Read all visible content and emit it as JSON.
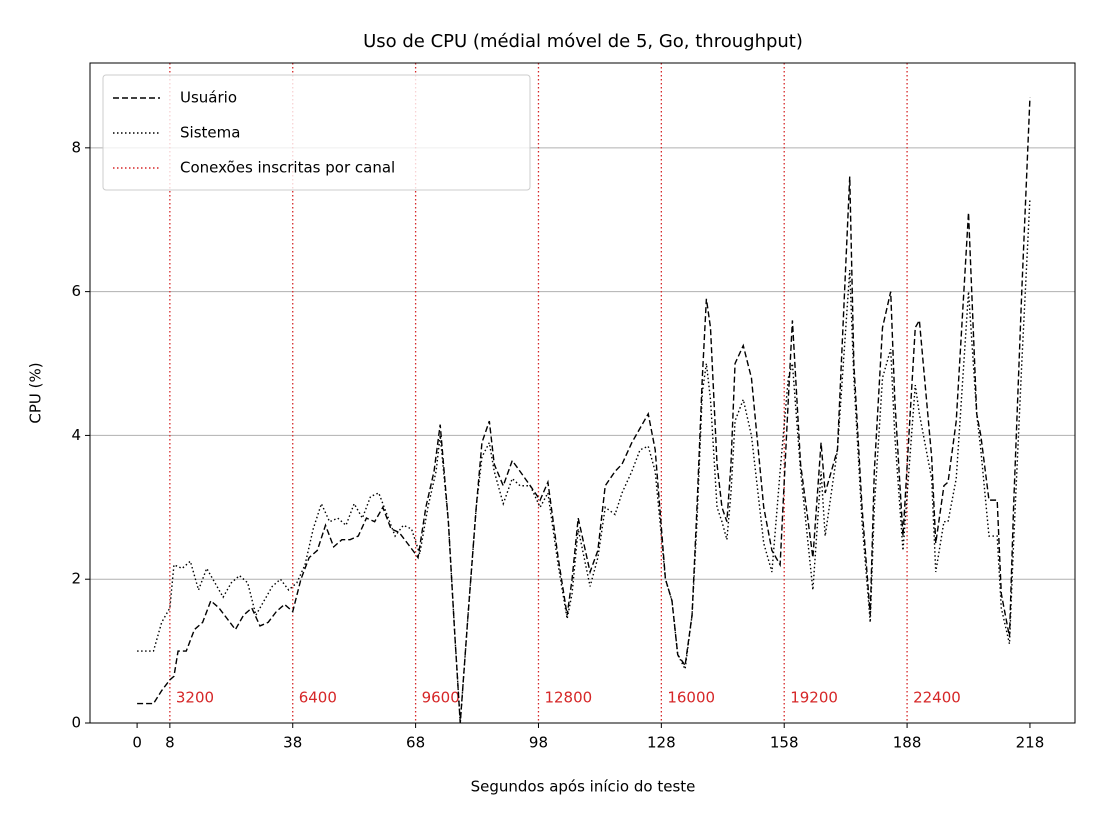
{
  "chart_data": {
    "type": "line",
    "title": "Uso de CPU (médial móvel de 5, Go, throughput)",
    "x_label": "Segundos após início do teste",
    "y_label": "CPU (%)",
    "xlim": [
      -11.5,
      229
    ],
    "ylim": [
      0,
      9.18
    ],
    "xticks": [
      0,
      8,
      38,
      68,
      98,
      128,
      158,
      188,
      218
    ],
    "yticks": [
      0,
      2,
      4,
      6,
      8
    ],
    "grid": "y",
    "legend": "upper left",
    "series": [
      {
        "name": "Usuário",
        "color": "#000000",
        "line_style": "dashed",
        "x": [
          0,
          4,
          6,
          8,
          9,
          10,
          12,
          14,
          16,
          18,
          20,
          22,
          24,
          26,
          28,
          30,
          32,
          34,
          36,
          38,
          40,
          42,
          44,
          46,
          48,
          50,
          52,
          54,
          56,
          58,
          60,
          62,
          64,
          66,
          68,
          68.6,
          70.5,
          72.5,
          74,
          76,
          77.6,
          78.9,
          80.8,
          82.8,
          84.2,
          86,
          87.2,
          89.4,
          91.6,
          93.5,
          96,
          98.4,
          100.3,
          102.8,
          105,
          106.2,
          107.7,
          110.6,
          112.5,
          114.3,
          116.7,
          118.4,
          120.8,
          122.8,
          124.8,
          126.5,
          129,
          130.6,
          132,
          133.8,
          135.5,
          136.7,
          138,
          139,
          140,
          141.6,
          142.8,
          144,
          145,
          146,
          148,
          150,
          153,
          155,
          157,
          159,
          160,
          162,
          165,
          167,
          168,
          171,
          174,
          175,
          177,
          179,
          180,
          182,
          184,
          185,
          187,
          190,
          191,
          194,
          195,
          197,
          198,
          200,
          203,
          205,
          206,
          208,
          210,
          211,
          213,
          214,
          216,
          218
        ],
        "values": [
          0.27,
          0.27,
          0.45,
          0.6,
          0.65,
          1.0,
          1.0,
          1.3,
          1.4,
          1.7,
          1.6,
          1.45,
          1.3,
          1.5,
          1.6,
          1.35,
          1.4,
          1.55,
          1.65,
          1.55,
          2.0,
          2.3,
          2.4,
          2.75,
          2.45,
          2.55,
          2.55,
          2.6,
          2.85,
          2.8,
          3.0,
          2.7,
          2.65,
          2.5,
          2.35,
          2.3,
          3.0,
          3.5,
          4.15,
          2.8,
          1.2,
          0.0,
          1.5,
          3.0,
          3.9,
          4.2,
          3.6,
          3.3,
          3.65,
          3.5,
          3.3,
          3.1,
          3.35,
          2.3,
          1.5,
          2.0,
          2.85,
          2.1,
          2.4,
          3.3,
          3.5,
          3.6,
          3.9,
          4.1,
          4.3,
          3.8,
          2.0,
          1.7,
          0.95,
          0.8,
          1.5,
          3.0,
          4.8,
          5.9,
          5.5,
          3.6,
          3.0,
          2.8,
          3.6,
          5.0,
          5.25,
          4.8,
          3.0,
          2.4,
          2.2,
          4.5,
          5.6,
          3.6,
          2.3,
          3.9,
          3.2,
          3.8,
          7.6,
          5.0,
          3.0,
          1.5,
          3.5,
          5.5,
          6.0,
          4.5,
          2.6,
          5.5,
          5.6,
          3.7,
          2.5,
          3.3,
          3.35,
          4.2,
          7.1,
          4.3,
          4.0,
          3.1,
          3.1,
          1.8,
          1.2,
          3.0,
          6.0,
          8.7
        ]
      },
      {
        "name": "Sistema",
        "color": "#000000",
        "line_style": "dotted",
        "x": [
          0,
          4,
          6,
          8,
          9,
          11,
          13,
          15,
          17,
          19,
          21,
          23,
          25,
          27,
          29,
          31,
          33,
          35,
          37,
          39,
          41,
          43,
          45,
          47,
          49,
          51,
          53,
          55,
          57,
          59,
          61,
          63,
          65,
          67,
          69,
          71,
          73,
          74,
          76,
          77.6,
          78.9,
          80.8,
          82.8,
          84.2,
          86,
          87.2,
          89.4,
          91.6,
          93.5,
          96,
          98.4,
          100.3,
          102.8,
          105,
          106.2,
          107.7,
          110.6,
          112.5,
          114.3,
          116.7,
          118.4,
          120.8,
          122.8,
          124.8,
          126.5,
          129,
          130.6,
          132,
          133.8,
          135.5,
          136.7,
          138,
          139,
          140,
          141.6,
          142.8,
          144,
          145,
          146,
          148,
          150,
          153,
          155,
          157,
          159,
          160,
          162,
          165,
          167,
          168,
          171,
          174,
          175,
          177,
          179,
          180,
          182,
          184,
          185,
          187,
          190,
          191,
          194,
          195,
          197,
          198,
          200,
          203,
          205,
          206,
          208,
          210,
          211,
          213,
          214,
          216,
          218
        ],
        "values": [
          1.0,
          1.0,
          1.4,
          1.6,
          2.2,
          2.15,
          2.25,
          1.85,
          2.15,
          1.95,
          1.75,
          1.95,
          2.05,
          1.95,
          1.5,
          1.7,
          1.9,
          2.0,
          1.85,
          1.95,
          2.2,
          2.7,
          3.05,
          2.8,
          2.85,
          2.75,
          3.05,
          2.85,
          3.15,
          3.2,
          2.9,
          2.6,
          2.75,
          2.7,
          2.35,
          3.0,
          3.5,
          4.0,
          2.8,
          1.2,
          0.0,
          1.5,
          3.0,
          3.7,
          3.9,
          3.5,
          3.05,
          3.4,
          3.3,
          3.3,
          3.0,
          3.2,
          2.2,
          1.45,
          1.8,
          2.7,
          1.9,
          2.3,
          3.0,
          2.9,
          3.2,
          3.5,
          3.8,
          3.85,
          3.5,
          2.0,
          1.7,
          0.95,
          0.75,
          1.5,
          2.8,
          4.6,
          5.0,
          4.5,
          3.0,
          2.8,
          2.55,
          3.2,
          4.2,
          4.5,
          4.0,
          2.5,
          2.1,
          3.5,
          4.8,
          5.0,
          3.5,
          1.85,
          3.5,
          2.6,
          3.8,
          6.3,
          4.8,
          2.8,
          1.4,
          3.0,
          4.8,
          5.2,
          4.0,
          2.4,
          4.7,
          4.3,
          3.4,
          2.1,
          2.8,
          2.8,
          3.4,
          6.0,
          4.3,
          3.8,
          2.6,
          2.6,
          1.6,
          1.1,
          2.5,
          5.0,
          7.3
        ]
      }
    ],
    "vlines": {
      "name": "Conexões inscritas por canal",
      "color": "#d62728",
      "x": [
        8,
        38,
        68,
        98,
        128,
        158,
        188
      ],
      "labels": [
        3200,
        6400,
        9600,
        12800,
        16000,
        19200,
        22400
      ]
    }
  }
}
